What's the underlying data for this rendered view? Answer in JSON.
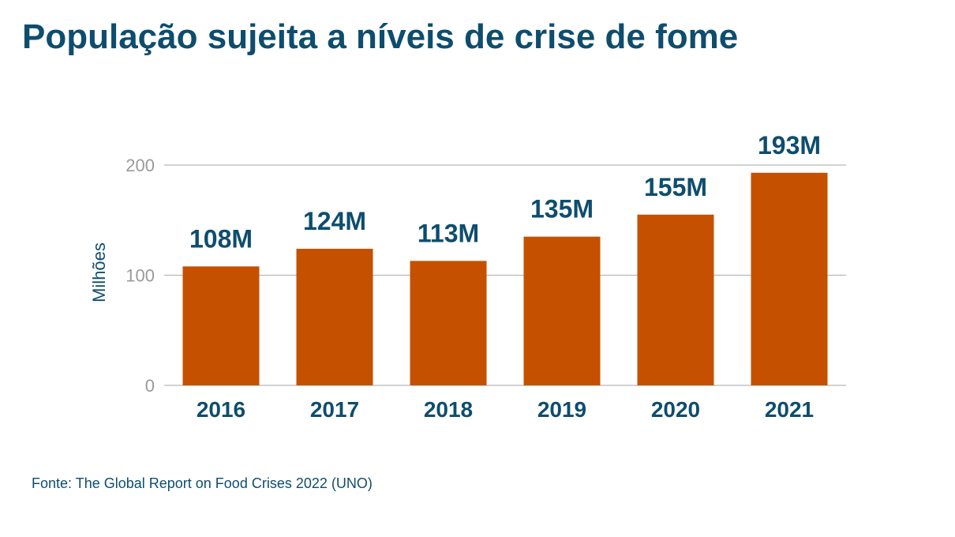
{
  "title": "População sujeita a níveis de crise de fome",
  "source": "Fonte: The Global Report on Food Crises 2022 (UNO)",
  "colors": {
    "bar": "#c55100",
    "title": "#0e4d6e",
    "label": "#0e4d6e",
    "tick": "#9a9a9a",
    "grid": "#b8b8b8"
  },
  "chart_data": {
    "type": "bar",
    "title": "",
    "xlabel": "",
    "ylabel": "Milhões",
    "categories": [
      "2016",
      "2017",
      "2018",
      "2019",
      "2020",
      "2021"
    ],
    "values": [
      108,
      124,
      113,
      135,
      155,
      193
    ],
    "data_labels": [
      "108M",
      "124M",
      "113M",
      "135M",
      "155M",
      "193M"
    ],
    "yticks": [
      0,
      100,
      200
    ],
    "ylim": [
      0,
      200
    ],
    "grid": true,
    "legend": "none"
  }
}
